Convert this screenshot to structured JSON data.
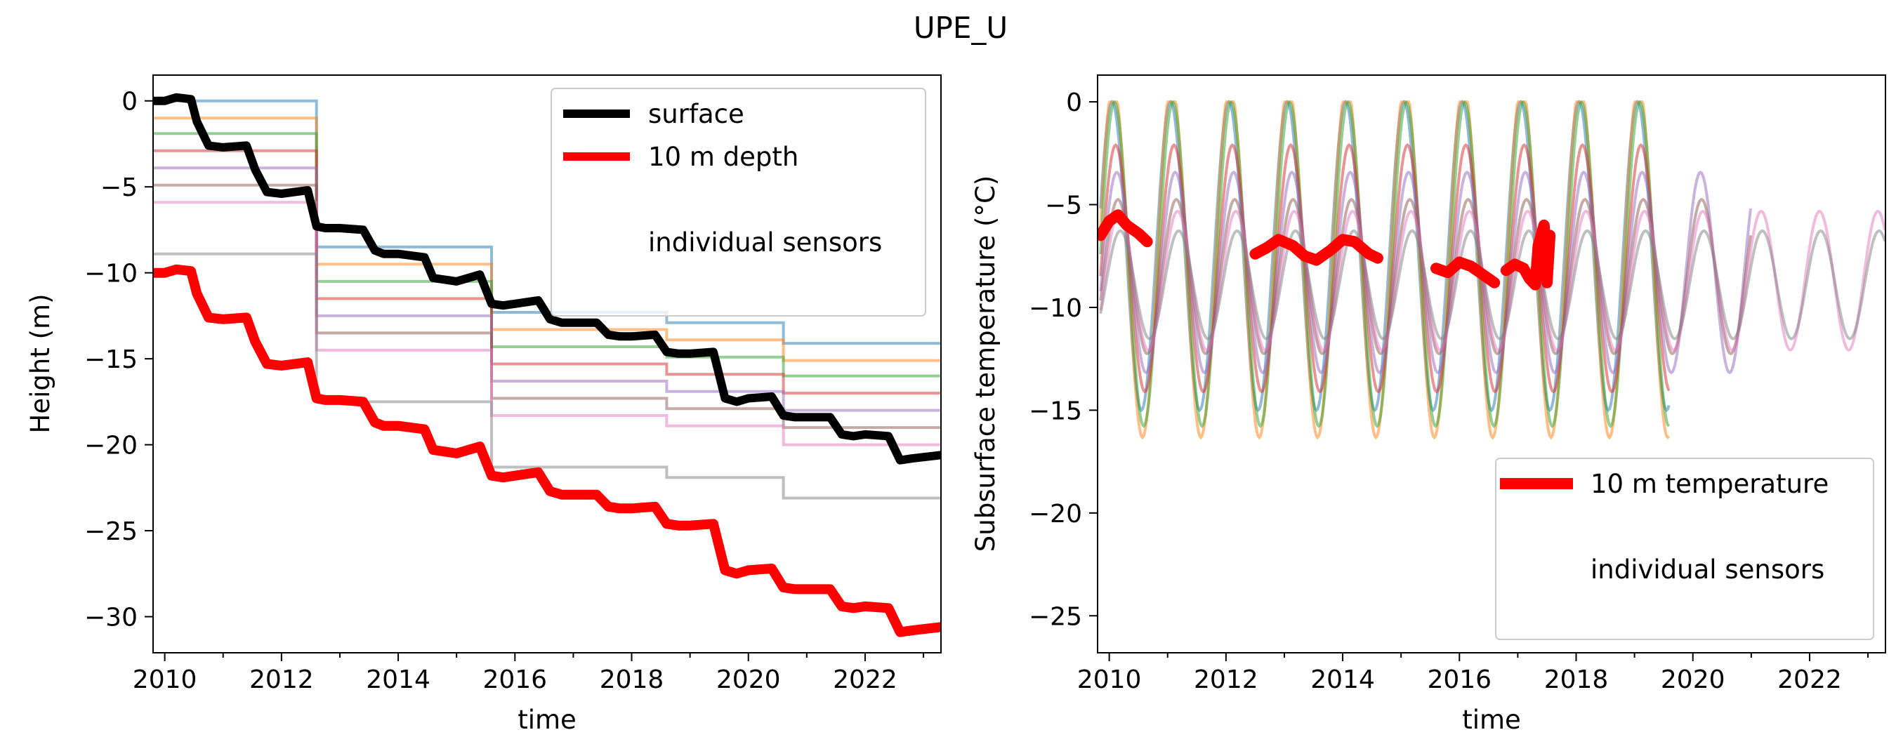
{
  "figure": {
    "title": "UPE_U"
  },
  "chart_data": [
    {
      "type": "line",
      "title": "",
      "xlabel": "time",
      "ylabel": "Height (m)",
      "xlim": [
        2009.8,
        2023.3
      ],
      "ylim": [
        -32.1,
        1.5
      ],
      "xticks": [
        2010,
        2012,
        2014,
        2016,
        2018,
        2020,
        2022
      ],
      "yticks": [
        0,
        -5,
        -10,
        -15,
        -20,
        -25,
        -30
      ],
      "grid": false,
      "legend": {
        "position": "top-right",
        "entries": [
          {
            "label": "surface",
            "color": "#000000"
          },
          {
            "label": "10 m depth",
            "color": "#ff0000"
          },
          {
            "label": "individual sensors",
            "color": "none"
          }
        ]
      },
      "series": [
        {
          "name": "surface",
          "color": "#000000",
          "points": [
            [
              2009.8,
              0.0
            ],
            [
              2010.0,
              0.0
            ],
            [
              2010.2,
              0.2
            ],
            [
              2010.45,
              0.1
            ],
            [
              2010.55,
              -1.2
            ],
            [
              2010.75,
              -2.6
            ],
            [
              2011.0,
              -2.7
            ],
            [
              2011.4,
              -2.6
            ],
            [
              2011.55,
              -4.0
            ],
            [
              2011.75,
              -5.3
            ],
            [
              2012.0,
              -5.4
            ],
            [
              2012.45,
              -5.2
            ],
            [
              2012.6,
              -7.3
            ],
            [
              2012.75,
              -7.4
            ],
            [
              2013.0,
              -7.4
            ],
            [
              2013.4,
              -7.5
            ],
            [
              2013.6,
              -8.7
            ],
            [
              2013.75,
              -8.9
            ],
            [
              2014.0,
              -8.9
            ],
            [
              2014.45,
              -9.1
            ],
            [
              2014.6,
              -10.3
            ],
            [
              2014.8,
              -10.4
            ],
            [
              2015.0,
              -10.5
            ],
            [
              2015.4,
              -10.1
            ],
            [
              2015.6,
              -11.8
            ],
            [
              2015.8,
              -11.9
            ],
            [
              2016.0,
              -11.8
            ],
            [
              2016.4,
              -11.6
            ],
            [
              2016.6,
              -12.7
            ],
            [
              2016.8,
              -12.9
            ],
            [
              2017.0,
              -12.9
            ],
            [
              2017.4,
              -12.9
            ],
            [
              2017.6,
              -13.6
            ],
            [
              2017.8,
              -13.7
            ],
            [
              2018.0,
              -13.7
            ],
            [
              2018.4,
              -13.6
            ],
            [
              2018.6,
              -14.6
            ],
            [
              2018.8,
              -14.7
            ],
            [
              2019.0,
              -14.7
            ],
            [
              2019.4,
              -14.6
            ],
            [
              2019.6,
              -17.3
            ],
            [
              2019.8,
              -17.5
            ],
            [
              2020.0,
              -17.3
            ],
            [
              2020.4,
              -17.2
            ],
            [
              2020.6,
              -18.3
            ],
            [
              2020.8,
              -18.4
            ],
            [
              2021.0,
              -18.4
            ],
            [
              2021.4,
              -18.4
            ],
            [
              2021.6,
              -19.4
            ],
            [
              2021.8,
              -19.5
            ],
            [
              2022.0,
              -19.4
            ],
            [
              2022.4,
              -19.5
            ],
            [
              2022.6,
              -20.9
            ],
            [
              2022.8,
              -20.8
            ],
            [
              2023.3,
              -20.6
            ]
          ]
        },
        {
          "name": "10 m depth",
          "color": "#ff0000",
          "points": [
            [
              2009.8,
              -10.0
            ],
            [
              2010.0,
              -10.0
            ],
            [
              2010.2,
              -9.8
            ],
            [
              2010.45,
              -9.9
            ],
            [
              2010.55,
              -11.2
            ],
            [
              2010.75,
              -12.6
            ],
            [
              2011.0,
              -12.7
            ],
            [
              2011.4,
              -12.6
            ],
            [
              2011.55,
              -14.0
            ],
            [
              2011.75,
              -15.3
            ],
            [
              2012.0,
              -15.4
            ],
            [
              2012.45,
              -15.2
            ],
            [
              2012.6,
              -17.3
            ],
            [
              2012.75,
              -17.4
            ],
            [
              2013.0,
              -17.4
            ],
            [
              2013.4,
              -17.5
            ],
            [
              2013.6,
              -18.7
            ],
            [
              2013.75,
              -18.9
            ],
            [
              2014.0,
              -18.9
            ],
            [
              2014.45,
              -19.1
            ],
            [
              2014.6,
              -20.3
            ],
            [
              2014.8,
              -20.4
            ],
            [
              2015.0,
              -20.5
            ],
            [
              2015.4,
              -20.1
            ],
            [
              2015.6,
              -21.8
            ],
            [
              2015.8,
              -21.9
            ],
            [
              2016.0,
              -21.8
            ],
            [
              2016.4,
              -21.6
            ],
            [
              2016.6,
              -22.7
            ],
            [
              2016.8,
              -22.9
            ],
            [
              2017.0,
              -22.9
            ],
            [
              2017.4,
              -22.9
            ],
            [
              2017.6,
              -23.6
            ],
            [
              2017.8,
              -23.7
            ],
            [
              2018.0,
              -23.7
            ],
            [
              2018.4,
              -23.6
            ],
            [
              2018.6,
              -24.6
            ],
            [
              2018.8,
              -24.7
            ],
            [
              2019.0,
              -24.7
            ],
            [
              2019.4,
              -24.6
            ],
            [
              2019.6,
              -27.3
            ],
            [
              2019.8,
              -27.5
            ],
            [
              2020.0,
              -27.3
            ],
            [
              2020.4,
              -27.2
            ],
            [
              2020.6,
              -28.3
            ],
            [
              2020.8,
              -28.4
            ],
            [
              2021.0,
              -28.4
            ],
            [
              2021.4,
              -28.4
            ],
            [
              2021.6,
              -29.4
            ],
            [
              2021.8,
              -29.5
            ],
            [
              2022.0,
              -29.4
            ],
            [
              2022.4,
              -29.5
            ],
            [
              2022.6,
              -30.9
            ],
            [
              2022.8,
              -30.8
            ],
            [
              2023.3,
              -30.6
            ]
          ]
        }
      ],
      "sensor_series": [
        {
          "color": "#1f77b4",
          "points": [
            [
              2009.8,
              0.0
            ],
            [
              2012.6,
              0.0
            ],
            [
              2012.6,
              -8.5
            ],
            [
              2015.6,
              -8.5
            ],
            [
              2015.6,
              -12.3
            ],
            [
              2018.6,
              -12.3
            ],
            [
              2018.6,
              -12.9
            ],
            [
              2020.6,
              -12.9
            ],
            [
              2020.6,
              -14.1
            ],
            [
              2023.3,
              -14.1
            ]
          ]
        },
        {
          "color": "#ff7f0e",
          "points": [
            [
              2009.8,
              -1.0
            ],
            [
              2012.6,
              -1.0
            ],
            [
              2012.6,
              -9.5
            ],
            [
              2015.6,
              -9.5
            ],
            [
              2015.6,
              -13.3
            ],
            [
              2018.6,
              -13.3
            ],
            [
              2018.6,
              -13.9
            ],
            [
              2020.6,
              -13.9
            ],
            [
              2020.6,
              -15.1
            ],
            [
              2023.3,
              -15.1
            ]
          ]
        },
        {
          "color": "#2ca02c",
          "points": [
            [
              2009.8,
              -1.9
            ],
            [
              2012.6,
              -1.9
            ],
            [
              2012.6,
              -10.5
            ],
            [
              2015.6,
              -10.5
            ],
            [
              2015.6,
              -14.3
            ],
            [
              2018.6,
              -14.3
            ],
            [
              2018.6,
              -14.9
            ],
            [
              2020.6,
              -14.9
            ],
            [
              2020.6,
              -16.0
            ],
            [
              2023.3,
              -16.0
            ]
          ]
        },
        {
          "color": "#d62728",
          "points": [
            [
              2009.8,
              -2.9
            ],
            [
              2012.6,
              -2.9
            ],
            [
              2012.6,
              -11.5
            ],
            [
              2015.6,
              -11.5
            ],
            [
              2015.6,
              -15.3
            ],
            [
              2018.6,
              -15.3
            ],
            [
              2018.6,
              -15.9
            ],
            [
              2020.6,
              -15.9
            ],
            [
              2020.6,
              -17.0
            ],
            [
              2023.3,
              -17.0
            ]
          ]
        },
        {
          "color": "#9467bd",
          "points": [
            [
              2009.8,
              -3.9
            ],
            [
              2012.6,
              -3.9
            ],
            [
              2012.6,
              -12.5
            ],
            [
              2015.6,
              -12.5
            ],
            [
              2015.6,
              -16.3
            ],
            [
              2018.6,
              -16.3
            ],
            [
              2018.6,
              -16.9
            ],
            [
              2020.6,
              -16.9
            ],
            [
              2020.6,
              -18.0
            ],
            [
              2023.3,
              -18.0
            ]
          ]
        },
        {
          "color": "#8c564b",
          "points": [
            [
              2009.8,
              -4.9
            ],
            [
              2012.6,
              -4.9
            ],
            [
              2012.6,
              -13.5
            ],
            [
              2015.6,
              -13.5
            ],
            [
              2015.6,
              -17.3
            ],
            [
              2018.6,
              -17.3
            ],
            [
              2018.6,
              -17.9
            ],
            [
              2020.6,
              -17.9
            ],
            [
              2020.6,
              -19.0
            ],
            [
              2023.3,
              -19.0
            ]
          ]
        },
        {
          "color": "#e377c2",
          "points": [
            [
              2009.8,
              -5.9
            ],
            [
              2012.6,
              -5.9
            ],
            [
              2012.6,
              -14.5
            ],
            [
              2015.6,
              -14.5
            ],
            [
              2015.6,
              -18.3
            ],
            [
              2018.6,
              -18.3
            ],
            [
              2018.6,
              -18.9
            ],
            [
              2020.6,
              -18.9
            ],
            [
              2020.6,
              -20.0
            ],
            [
              2023.3,
              -20.0
            ]
          ]
        },
        {
          "color": "#7f7f7f",
          "points": [
            [
              2009.8,
              -8.9
            ],
            [
              2012.6,
              -8.9
            ],
            [
              2012.6,
              -17.5
            ],
            [
              2015.6,
              -17.5
            ],
            [
              2015.6,
              -21.3
            ],
            [
              2018.6,
              -21.3
            ],
            [
              2018.6,
              -21.9
            ],
            [
              2020.6,
              -21.9
            ],
            [
              2020.6,
              -23.1
            ],
            [
              2023.3,
              -23.1
            ]
          ]
        }
      ]
    },
    {
      "type": "line",
      "title": "",
      "xlabel": "time",
      "ylabel": "Subsurface temperature (°C)",
      "xlim": [
        2009.8,
        2023.3
      ],
      "ylim": [
        -26.8,
        1.3
      ],
      "xticks": [
        2010,
        2012,
        2014,
        2016,
        2018,
        2020,
        2022
      ],
      "yticks": [
        0,
        -5,
        -10,
        -15,
        -20,
        -25
      ],
      "grid": false,
      "legend": {
        "position": "lower-right",
        "entries": [
          {
            "label": "10 m temperature",
            "color": "#ff0000"
          },
          {
            "label": "individual sensors",
            "color": "none"
          }
        ]
      },
      "series": [
        {
          "name": "10 m temperature",
          "color": "#ff0000",
          "segments": [
            [
              [
                2009.85,
                -6.5
              ],
              [
                2010.0,
                -5.8
              ],
              [
                2010.15,
                -5.5
              ],
              [
                2010.3,
                -6.0
              ],
              [
                2010.5,
                -6.4
              ],
              [
                2010.65,
                -6.8
              ]
            ],
            [
              [
                2012.5,
                -7.4
              ],
              [
                2012.7,
                -7.1
              ],
              [
                2012.9,
                -6.7
              ],
              [
                2013.15,
                -7.0
              ],
              [
                2013.35,
                -7.5
              ],
              [
                2013.55,
                -7.7
              ],
              [
                2013.8,
                -7.2
              ],
              [
                2014.0,
                -6.7
              ],
              [
                2014.2,
                -6.8
              ],
              [
                2014.45,
                -7.4
              ],
              [
                2014.6,
                -7.6
              ]
            ],
            [
              [
                2015.6,
                -8.1
              ],
              [
                2015.8,
                -8.3
              ],
              [
                2016.0,
                -7.8
              ],
              [
                2016.2,
                -8.0
              ],
              [
                2016.45,
                -8.5
              ],
              [
                2016.6,
                -8.8
              ]
            ],
            [
              [
                2016.8,
                -8.2
              ],
              [
                2016.95,
                -7.9
              ],
              [
                2017.1,
                -8.1
              ],
              [
                2017.2,
                -8.6
              ],
              [
                2017.3,
                -8.9
              ],
              [
                2017.35,
                -7.0
              ],
              [
                2017.45,
                -6.0
              ],
              [
                2017.5,
                -8.8
              ],
              [
                2017.55,
                -6.5
              ]
            ]
          ]
        }
      ],
      "sensor_series": [
        {
          "color": "#1f77b4",
          "period_offset": 0.0,
          "amplitude_scale": 1.0
        },
        {
          "color": "#ff7f0e",
          "period_offset": 0.02,
          "amplitude_scale": 1.15
        },
        {
          "color": "#2ca02c",
          "period_offset": 0.04,
          "amplitude_scale": 1.05
        },
        {
          "color": "#d62728",
          "period_offset": 0.06,
          "amplitude_scale": 0.8
        },
        {
          "color": "#9467bd",
          "period_offset": 0.08,
          "amplitude_scale": 0.65
        },
        {
          "color": "#8c564b",
          "period_offset": 0.1,
          "amplitude_scale": 0.5
        },
        {
          "color": "#e377c2",
          "period_offset": 0.12,
          "amplitude_scale": 0.45
        },
        {
          "color": "#7f7f7f",
          "period_offset": 0.14,
          "amplitude_scale": 0.35
        }
      ]
    }
  ]
}
